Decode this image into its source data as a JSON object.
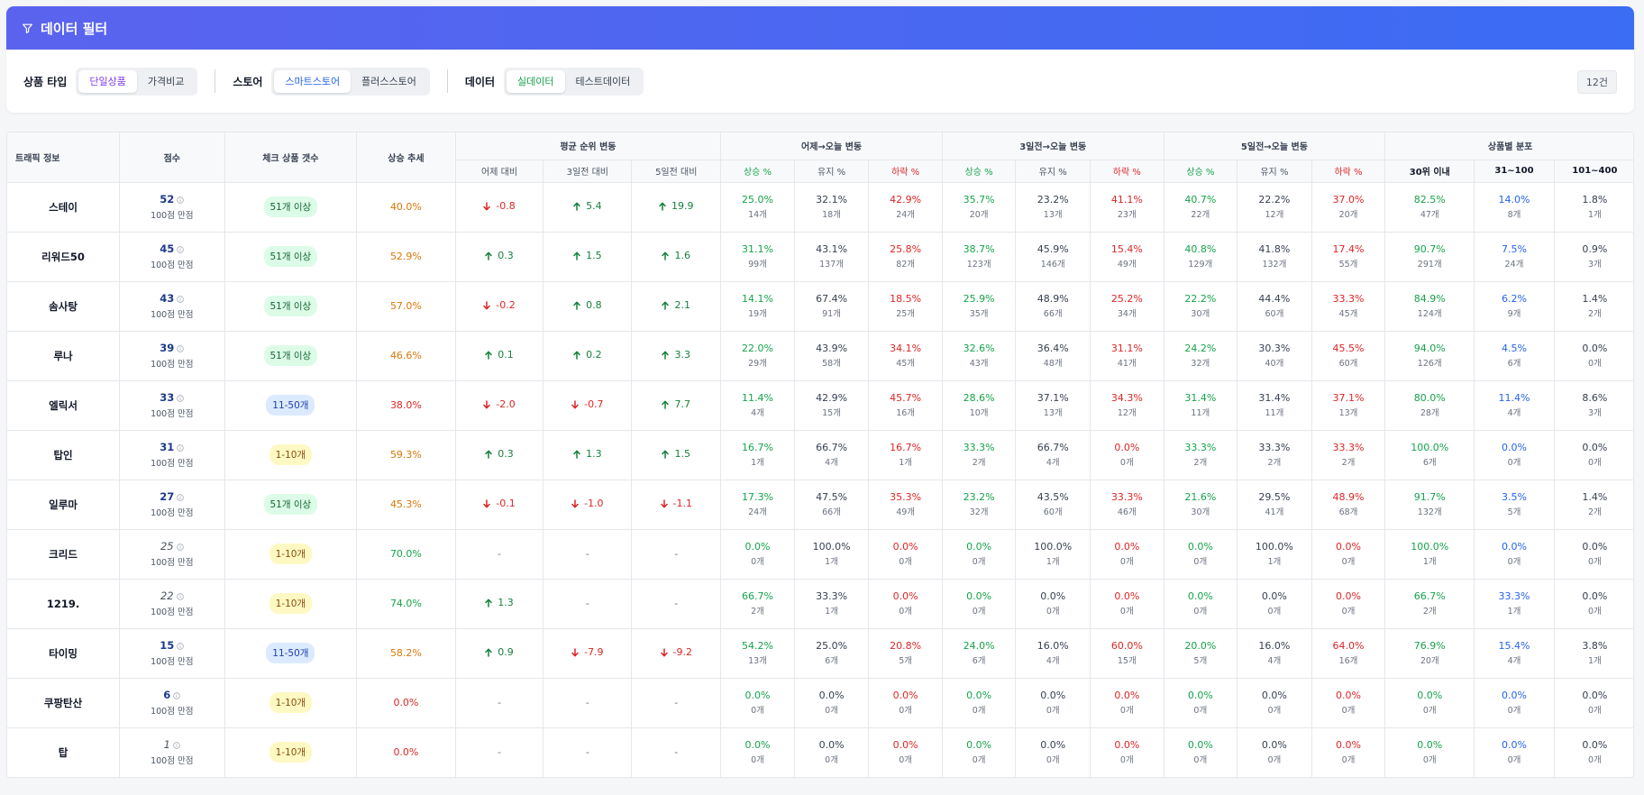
{
  "filter": {
    "title": "데이터 필터",
    "groups": [
      {
        "label": "상품 타입",
        "options": [
          "단일상품",
          "가격비교"
        ],
        "active": 0,
        "color": "purple"
      },
      {
        "label": "스토어",
        "options": [
          "스마트스토어",
          "플러스스토어"
        ],
        "active": 0,
        "color": "blue"
      },
      {
        "label": "데이터",
        "options": [
          "실데이터",
          "테스트데이터"
        ],
        "active": 0,
        "color": "green"
      }
    ],
    "count": "12건"
  },
  "colors": {
    "up": "#16a34a",
    "down": "#dc2626",
    "accent": "#3b6cf4"
  },
  "table": {
    "headers": {
      "traffic": "트래픽 정보",
      "score": "점수",
      "check_count": "체크 상품 갯수",
      "trend": "상승 추세",
      "avg_rank": "평균 순위 변동",
      "d1": "어제→오늘 변동",
      "d3": "3일전→오늘 변동",
      "d5": "5일전→오늘 변동",
      "dist": "상품별 분포",
      "avg_sub": [
        "어제 대비",
        "3일전 대비",
        "5일전 대비"
      ],
      "chg_sub": [
        "상승 %",
        "유지 %",
        "하락 %"
      ],
      "dist_sub": [
        "30위 이내",
        "31~100",
        "101~400"
      ]
    },
    "score_sub": "100점 만점",
    "rows": [
      {
        "name": "스테이",
        "score": "52",
        "score_dim": false,
        "badge": "51개 이상",
        "badge_c": "g",
        "trend": "40.0%",
        "trend_c": "orange",
        "ranks": [
          [
            "down",
            "-0.8"
          ],
          [
            "up",
            "5.4"
          ],
          [
            "up",
            "19.9"
          ]
        ],
        "d1": [
          [
            "25.0%",
            "14개"
          ],
          [
            "32.1%",
            "18개"
          ],
          [
            "42.9%",
            "24개"
          ]
        ],
        "d3": [
          [
            "35.7%",
            "20개"
          ],
          [
            "23.2%",
            "13개"
          ],
          [
            "41.1%",
            "23개"
          ]
        ],
        "d5": [
          [
            "40.7%",
            "22개"
          ],
          [
            "22.2%",
            "12개"
          ],
          [
            "37.0%",
            "20개"
          ]
        ],
        "dist": [
          [
            "82.5%",
            "47개"
          ],
          [
            "14.0%",
            "8개"
          ],
          [
            "1.8%",
            "1개"
          ]
        ]
      },
      {
        "name": "리워드50",
        "score": "45",
        "score_dim": false,
        "badge": "51개 이상",
        "badge_c": "g",
        "trend": "52.9%",
        "trend_c": "orange",
        "ranks": [
          [
            "up",
            "0.3"
          ],
          [
            "up",
            "1.5"
          ],
          [
            "up",
            "1.6"
          ]
        ],
        "d1": [
          [
            "31.1%",
            "99개"
          ],
          [
            "43.1%",
            "137개"
          ],
          [
            "25.8%",
            "82개"
          ]
        ],
        "d3": [
          [
            "38.7%",
            "123개"
          ],
          [
            "45.9%",
            "146개"
          ],
          [
            "15.4%",
            "49개"
          ]
        ],
        "d5": [
          [
            "40.8%",
            "129개"
          ],
          [
            "41.8%",
            "132개"
          ],
          [
            "17.4%",
            "55개"
          ]
        ],
        "dist": [
          [
            "90.7%",
            "291개"
          ],
          [
            "7.5%",
            "24개"
          ],
          [
            "0.9%",
            "3개"
          ]
        ]
      },
      {
        "name": "솜사탕",
        "score": "43",
        "score_dim": false,
        "badge": "51개 이상",
        "badge_c": "g",
        "trend": "57.0%",
        "trend_c": "orange",
        "ranks": [
          [
            "down",
            "-0.2"
          ],
          [
            "up",
            "0.8"
          ],
          [
            "up",
            "2.1"
          ]
        ],
        "d1": [
          [
            "14.1%",
            "19개"
          ],
          [
            "67.4%",
            "91개"
          ],
          [
            "18.5%",
            "25개"
          ]
        ],
        "d3": [
          [
            "25.9%",
            "35개"
          ],
          [
            "48.9%",
            "66개"
          ],
          [
            "25.2%",
            "34개"
          ]
        ],
        "d5": [
          [
            "22.2%",
            "30개"
          ],
          [
            "44.4%",
            "60개"
          ],
          [
            "33.3%",
            "45개"
          ]
        ],
        "dist": [
          [
            "84.9%",
            "124개"
          ],
          [
            "6.2%",
            "9개"
          ],
          [
            "1.4%",
            "2개"
          ]
        ]
      },
      {
        "name": "루나",
        "score": "39",
        "score_dim": false,
        "badge": "51개 이상",
        "badge_c": "g",
        "trend": "46.6%",
        "trend_c": "orange",
        "ranks": [
          [
            "up",
            "0.1"
          ],
          [
            "up",
            "0.2"
          ],
          [
            "up",
            "3.3"
          ]
        ],
        "d1": [
          [
            "22.0%",
            "29개"
          ],
          [
            "43.9%",
            "58개"
          ],
          [
            "34.1%",
            "45개"
          ]
        ],
        "d3": [
          [
            "32.6%",
            "43개"
          ],
          [
            "36.4%",
            "48개"
          ],
          [
            "31.1%",
            "41개"
          ]
        ],
        "d5": [
          [
            "24.2%",
            "32개"
          ],
          [
            "30.3%",
            "40개"
          ],
          [
            "45.5%",
            "60개"
          ]
        ],
        "dist": [
          [
            "94.0%",
            "126개"
          ],
          [
            "4.5%",
            "6개"
          ],
          [
            "0.0%",
            "0개"
          ]
        ]
      },
      {
        "name": "엘릭서",
        "score": "33",
        "score_dim": false,
        "badge": "11-50개",
        "badge_c": "b",
        "trend": "38.0%",
        "trend_c": "red",
        "ranks": [
          [
            "down",
            "-2.0"
          ],
          [
            "down",
            "-0.7"
          ],
          [
            "up",
            "7.7"
          ]
        ],
        "d1": [
          [
            "11.4%",
            "4개"
          ],
          [
            "42.9%",
            "15개"
          ],
          [
            "45.7%",
            "16개"
          ]
        ],
        "d3": [
          [
            "28.6%",
            "10개"
          ],
          [
            "37.1%",
            "13개"
          ],
          [
            "34.3%",
            "12개"
          ]
        ],
        "d5": [
          [
            "31.4%",
            "11개"
          ],
          [
            "31.4%",
            "11개"
          ],
          [
            "37.1%",
            "13개"
          ]
        ],
        "dist": [
          [
            "80.0%",
            "28개"
          ],
          [
            "11.4%",
            "4개"
          ],
          [
            "8.6%",
            "3개"
          ]
        ]
      },
      {
        "name": "탑인",
        "score": "31",
        "score_dim": false,
        "badge": "1-10개",
        "badge_c": "y",
        "trend": "59.3%",
        "trend_c": "orange",
        "ranks": [
          [
            "up",
            "0.3"
          ],
          [
            "up",
            "1.3"
          ],
          [
            "up",
            "1.5"
          ]
        ],
        "d1": [
          [
            "16.7%",
            "1개"
          ],
          [
            "66.7%",
            "4개"
          ],
          [
            "16.7%",
            "1개"
          ]
        ],
        "d3": [
          [
            "33.3%",
            "2개"
          ],
          [
            "66.7%",
            "4개"
          ],
          [
            "0.0%",
            "0개"
          ]
        ],
        "d5": [
          [
            "33.3%",
            "2개"
          ],
          [
            "33.3%",
            "2개"
          ],
          [
            "33.3%",
            "2개"
          ]
        ],
        "dist": [
          [
            "100.0%",
            "6개"
          ],
          [
            "0.0%",
            "0개"
          ],
          [
            "0.0%",
            "0개"
          ]
        ]
      },
      {
        "name": "일루마",
        "score": "27",
        "score_dim": false,
        "badge": "51개 이상",
        "badge_c": "g",
        "trend": "45.3%",
        "trend_c": "orange",
        "ranks": [
          [
            "down",
            "-0.1"
          ],
          [
            "down",
            "-1.0"
          ],
          [
            "down",
            "-1.1"
          ]
        ],
        "d1": [
          [
            "17.3%",
            "24개"
          ],
          [
            "47.5%",
            "66개"
          ],
          [
            "35.3%",
            "49개"
          ]
        ],
        "d3": [
          [
            "23.2%",
            "32개"
          ],
          [
            "43.5%",
            "60개"
          ],
          [
            "33.3%",
            "46개"
          ]
        ],
        "d5": [
          [
            "21.6%",
            "30개"
          ],
          [
            "29.5%",
            "41개"
          ],
          [
            "48.9%",
            "68개"
          ]
        ],
        "dist": [
          [
            "91.7%",
            "132개"
          ],
          [
            "3.5%",
            "5개"
          ],
          [
            "1.4%",
            "2개"
          ]
        ]
      },
      {
        "name": "크리드",
        "score": "25",
        "score_dim": true,
        "badge": "1-10개",
        "badge_c": "y",
        "trend": "70.0%",
        "trend_c": "green",
        "ranks": [
          [
            "none",
            "-"
          ],
          [
            "none",
            "-"
          ],
          [
            "none",
            "-"
          ]
        ],
        "d1": [
          [
            "0.0%",
            "0개"
          ],
          [
            "100.0%",
            "1개"
          ],
          [
            "0.0%",
            "0개"
          ]
        ],
        "d3": [
          [
            "0.0%",
            "0개"
          ],
          [
            "100.0%",
            "1개"
          ],
          [
            "0.0%",
            "0개"
          ]
        ],
        "d5": [
          [
            "0.0%",
            "0개"
          ],
          [
            "100.0%",
            "1개"
          ],
          [
            "0.0%",
            "0개"
          ]
        ],
        "dist": [
          [
            "100.0%",
            "1개"
          ],
          [
            "0.0%",
            "0개"
          ],
          [
            "0.0%",
            "0개"
          ]
        ]
      },
      {
        "name": "1219.",
        "score": "22",
        "score_dim": true,
        "badge": "1-10개",
        "badge_c": "y",
        "trend": "74.0%",
        "trend_c": "green",
        "ranks": [
          [
            "up",
            "1.3"
          ],
          [
            "none",
            "-"
          ],
          [
            "none",
            "-"
          ]
        ],
        "d1": [
          [
            "66.7%",
            "2개"
          ],
          [
            "33.3%",
            "1개"
          ],
          [
            "0.0%",
            "0개"
          ]
        ],
        "d3": [
          [
            "0.0%",
            "0개"
          ],
          [
            "0.0%",
            "0개"
          ],
          [
            "0.0%",
            "0개"
          ]
        ],
        "d5": [
          [
            "0.0%",
            "0개"
          ],
          [
            "0.0%",
            "0개"
          ],
          [
            "0.0%",
            "0개"
          ]
        ],
        "dist": [
          [
            "66.7%",
            "2개"
          ],
          [
            "33.3%",
            "1개"
          ],
          [
            "0.0%",
            "0개"
          ]
        ]
      },
      {
        "name": "타이밍",
        "score": "15",
        "score_dim": false,
        "badge": "11-50개",
        "badge_c": "b",
        "trend": "58.2%",
        "trend_c": "orange",
        "ranks": [
          [
            "up",
            "0.9"
          ],
          [
            "down",
            "-7.9"
          ],
          [
            "down",
            "-9.2"
          ]
        ],
        "d1": [
          [
            "54.2%",
            "13개"
          ],
          [
            "25.0%",
            "6개"
          ],
          [
            "20.8%",
            "5개"
          ]
        ],
        "d3": [
          [
            "24.0%",
            "6개"
          ],
          [
            "16.0%",
            "4개"
          ],
          [
            "60.0%",
            "15개"
          ]
        ],
        "d5": [
          [
            "20.0%",
            "5개"
          ],
          [
            "16.0%",
            "4개"
          ],
          [
            "64.0%",
            "16개"
          ]
        ],
        "dist": [
          [
            "76.9%",
            "20개"
          ],
          [
            "15.4%",
            "4개"
          ],
          [
            "3.8%",
            "1개"
          ]
        ]
      },
      {
        "name": "쿠팡탄산",
        "score": "6",
        "score_dim": false,
        "badge": "1-10개",
        "badge_c": "y",
        "trend": "0.0%",
        "trend_c": "red",
        "ranks": [
          [
            "none",
            "-"
          ],
          [
            "none",
            "-"
          ],
          [
            "none",
            "-"
          ]
        ],
        "d1": [
          [
            "0.0%",
            "0개"
          ],
          [
            "0.0%",
            "0개"
          ],
          [
            "0.0%",
            "0개"
          ]
        ],
        "d3": [
          [
            "0.0%",
            "0개"
          ],
          [
            "0.0%",
            "0개"
          ],
          [
            "0.0%",
            "0개"
          ]
        ],
        "d5": [
          [
            "0.0%",
            "0개"
          ],
          [
            "0.0%",
            "0개"
          ],
          [
            "0.0%",
            "0개"
          ]
        ],
        "dist": [
          [
            "0.0%",
            "0개"
          ],
          [
            "0.0%",
            "0개"
          ],
          [
            "0.0%",
            "0개"
          ]
        ]
      },
      {
        "name": "탑",
        "score": "1",
        "score_dim": true,
        "badge": "1-10개",
        "badge_c": "y",
        "trend": "0.0%",
        "trend_c": "red",
        "ranks": [
          [
            "none",
            "-"
          ],
          [
            "none",
            "-"
          ],
          [
            "none",
            "-"
          ]
        ],
        "d1": [
          [
            "0.0%",
            "0개"
          ],
          [
            "0.0%",
            "0개"
          ],
          [
            "0.0%",
            "0개"
          ]
        ],
        "d3": [
          [
            "0.0%",
            "0개"
          ],
          [
            "0.0%",
            "0개"
          ],
          [
            "0.0%",
            "0개"
          ]
        ],
        "d5": [
          [
            "0.0%",
            "0개"
          ],
          [
            "0.0%",
            "0개"
          ],
          [
            "0.0%",
            "0개"
          ]
        ],
        "dist": [
          [
            "0.0%",
            "0개"
          ],
          [
            "0.0%",
            "0개"
          ],
          [
            "0.0%",
            "0개"
          ]
        ]
      }
    ]
  }
}
